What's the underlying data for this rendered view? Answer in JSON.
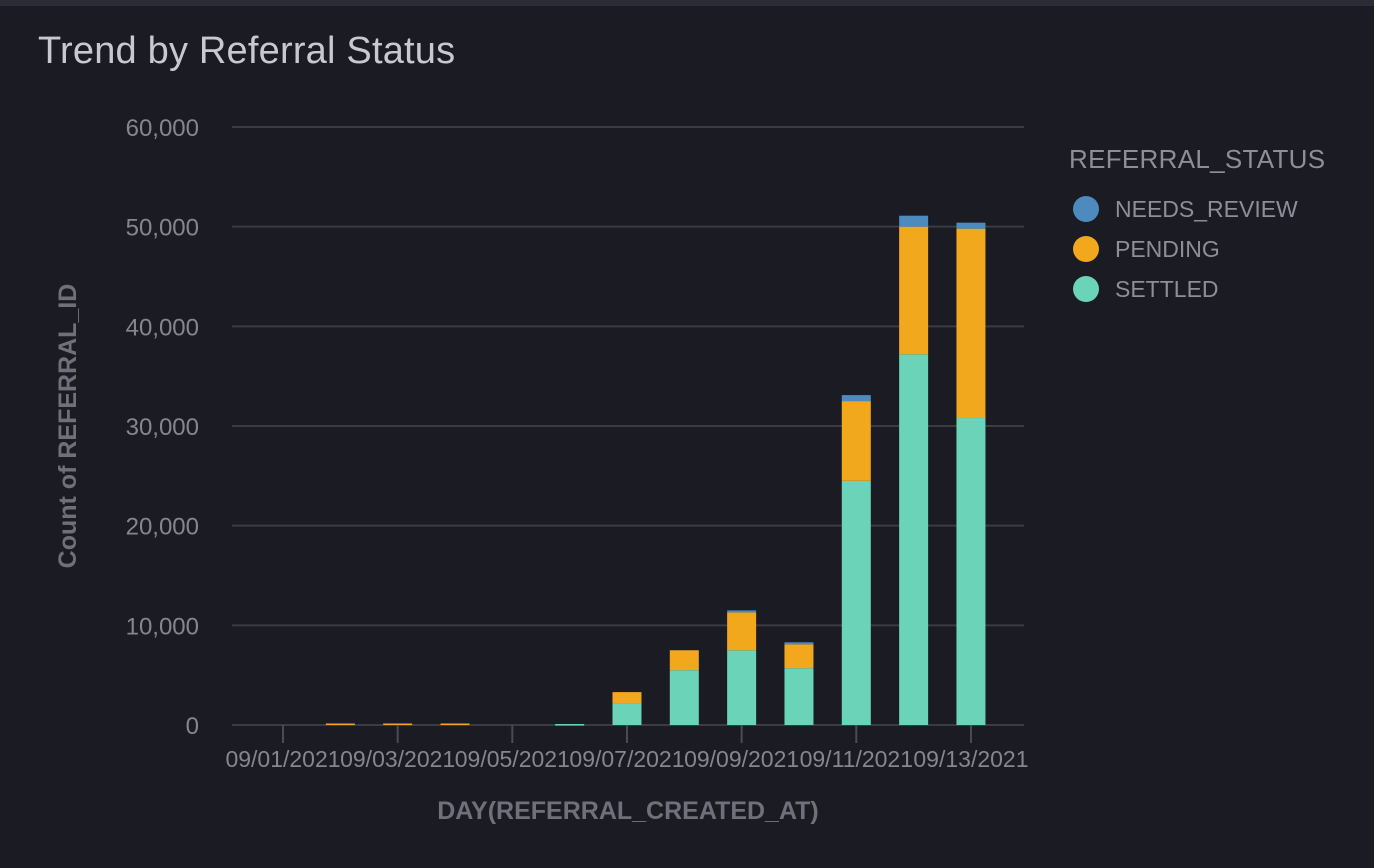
{
  "title": "Trend by Referral Status",
  "colors": {
    "NEEDS_REVIEW": "#4d8bbf",
    "PENDING": "#f2a81d",
    "SETTLED": "#6bd3b8",
    "grid": "#3a3b45",
    "axis_text": "#85868f"
  },
  "legend": {
    "title": "REFERRAL_STATUS",
    "items": [
      {
        "label": "NEEDS_REVIEW",
        "color": "#4d8bbf",
        "icon": "circle-icon"
      },
      {
        "label": "PENDING",
        "color": "#f2a81d",
        "icon": "circle-icon"
      },
      {
        "label": "SETTLED",
        "color": "#6bd3b8",
        "icon": "circle-icon"
      }
    ]
  },
  "chart_data": {
    "type": "bar",
    "stacked": true,
    "title": "Trend by Referral Status",
    "xlabel": "DAY(REFERRAL_CREATED_AT)",
    "ylabel": "Count of REFERRAL_ID",
    "ylim": [
      0,
      60000
    ],
    "yticks": [
      "0",
      "10,000",
      "20,000",
      "30,000",
      "40,000",
      "50,000",
      "60,000"
    ],
    "ytick_values": [
      0,
      10000,
      20000,
      30000,
      40000,
      50000,
      60000
    ],
    "x": [
      "09/01/2021",
      "09/02/2021",
      "09/03/2021",
      "09/04/2021",
      "09/05/2021",
      "09/06/2021",
      "09/07/2021",
      "09/08/2021",
      "09/09/2021",
      "09/10/2021",
      "09/11/2021",
      "09/12/2021",
      "09/13/2021"
    ],
    "xtick_labels": [
      "09/01/2021",
      "09/03/2021",
      "09/05/2021",
      "09/07/2021",
      "09/09/2021",
      "09/11/2021",
      "09/13/2021"
    ],
    "series": [
      {
        "name": "SETTLED",
        "values": [
          0,
          0,
          0,
          0,
          0,
          100,
          2200,
          5500,
          7500,
          5700,
          24500,
          37200,
          30800
        ]
      },
      {
        "name": "PENDING",
        "values": [
          0,
          150,
          150,
          150,
          0,
          0,
          1100,
          2000,
          3800,
          2400,
          8000,
          12800,
          19000
        ]
      },
      {
        "name": "NEEDS_REVIEW",
        "values": [
          0,
          0,
          0,
          0,
          0,
          0,
          0,
          0,
          200,
          200,
          600,
          1100,
          600
        ]
      }
    ],
    "grid": true,
    "legend_position": "right"
  }
}
